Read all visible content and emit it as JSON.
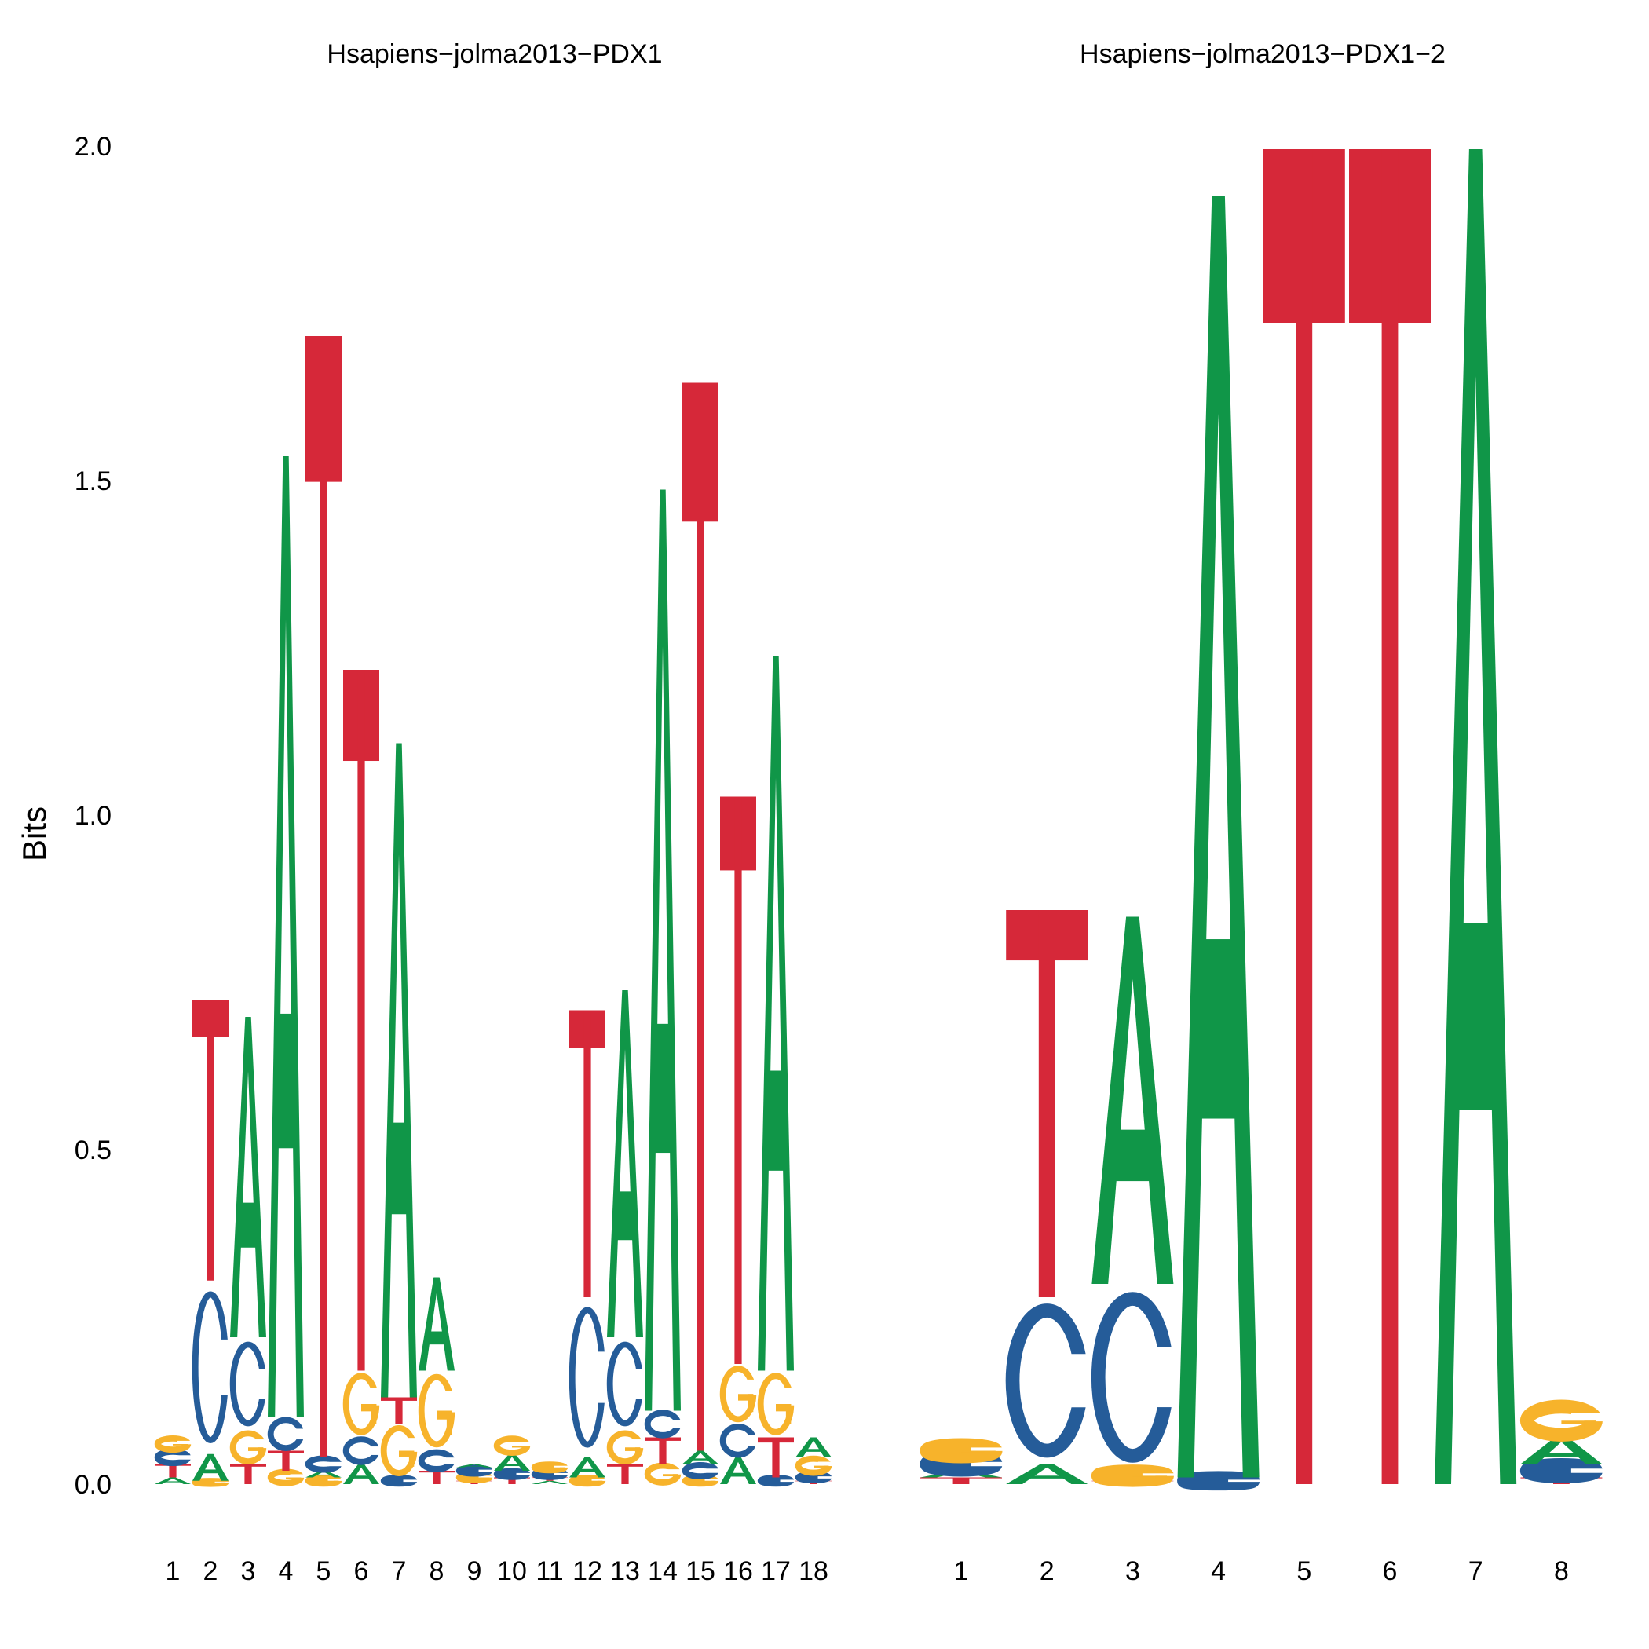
{
  "chart_data": {
    "type": "sequence-logo",
    "ylabel": "Bits",
    "ylim": [
      0,
      2
    ],
    "yticks": [
      "0.0",
      "0.5",
      "1.0",
      "1.5",
      "2.0"
    ],
    "colors": {
      "A": "#109648",
      "C": "#255C99",
      "G": "#F7B32B",
      "T": "#D62839"
    },
    "panels": [
      {
        "title": "Hsapiens−jolma2013−PDX1",
        "positions": [
          {
            "label": "1",
            "letters": [
              [
                "A",
                0.01
              ],
              [
                "T",
                0.02
              ],
              [
                "C",
                0.02
              ],
              [
                "G",
                0.02
              ]
            ]
          },
          {
            "label": "2",
            "letters": [
              [
                "G",
                0.005
              ],
              [
                "A",
                0.04
              ],
              [
                "C",
                0.26
              ],
              [
                "T",
                0.42
              ]
            ]
          },
          {
            "label": "3",
            "letters": [
              [
                "T",
                0.03
              ],
              [
                "G",
                0.05
              ],
              [
                "C",
                0.14
              ],
              [
                "A",
                0.48
              ]
            ]
          },
          {
            "label": "4",
            "letters": [
              [
                "G",
                0.02
              ],
              [
                "T",
                0.03
              ],
              [
                "C",
                0.05
              ],
              [
                "A",
                1.44
              ]
            ]
          },
          {
            "label": "5",
            "letters": [
              [
                "G",
                0.01
              ],
              [
                "A",
                0.01
              ],
              [
                "C",
                0.02
              ],
              [
                "T",
                1.68
              ]
            ]
          },
          {
            "label": "6",
            "letters": [
              [
                "A",
                0.03
              ],
              [
                "C",
                0.04
              ],
              [
                "G",
                0.1
              ],
              [
                "T",
                1.05
              ]
            ]
          },
          {
            "label": "7",
            "letters": [
              [
                "C",
                0.01
              ],
              [
                "G",
                0.08
              ],
              [
                "T",
                0.04
              ],
              [
                "A",
                0.98
              ]
            ]
          },
          {
            "label": "8",
            "letters": [
              [
                "T",
                0.02
              ],
              [
                "C",
                0.03
              ],
              [
                "G",
                0.12
              ],
              [
                "A",
                0.14
              ]
            ]
          },
          {
            "label": "9",
            "letters": [
              [
                "T",
                0.005
              ],
              [
                "G",
                0.01
              ],
              [
                "C",
                0.01
              ],
              [
                "A",
                0.005
              ]
            ]
          },
          {
            "label": "10",
            "letters": [
              [
                "T",
                0.01
              ],
              [
                "C",
                0.01
              ],
              [
                "A",
                0.025
              ],
              [
                "G",
                0.025
              ]
            ]
          },
          {
            "label": "11",
            "letters": [
              [
                "A",
                0.005
              ],
              [
                "T",
                0.005
              ],
              [
                "C",
                0.01
              ],
              [
                "G",
                0.01
              ]
            ]
          },
          {
            "label": "12",
            "letters": [
              [
                "G",
                0.01
              ],
              [
                "A",
                0.03
              ],
              [
                "C",
                0.24
              ],
              [
                "T",
                0.43
              ]
            ]
          },
          {
            "label": "13",
            "letters": [
              [
                "T",
                0.03
              ],
              [
                "G",
                0.05
              ],
              [
                "C",
                0.14
              ],
              [
                "A",
                0.52
              ]
            ]
          },
          {
            "label": "14",
            "letters": [
              [
                "G",
                0.03
              ],
              [
                "T",
                0.04
              ],
              [
                "C",
                0.04
              ],
              [
                "A",
                1.38
              ]
            ]
          },
          {
            "label": "15",
            "letters": [
              [
                "G",
                0.01
              ],
              [
                "C",
                0.02
              ],
              [
                "A",
                0.02
              ],
              [
                "T",
                1.6
              ]
            ]
          },
          {
            "label": "16",
            "letters": [
              [
                "A",
                0.04
              ],
              [
                "C",
                0.05
              ],
              [
                "G",
                0.09
              ],
              [
                "T",
                0.85
              ]
            ]
          },
          {
            "label": "17",
            "letters": [
              [
                "C",
                0.01
              ],
              [
                "T",
                0.06
              ],
              [
                "G",
                0.1
              ],
              [
                "A",
                1.07
              ]
            ]
          },
          {
            "label": "18",
            "letters": [
              [
                "T",
                0.005
              ],
              [
                "C",
                0.01
              ],
              [
                "G",
                0.025
              ],
              [
                "A",
                0.03
              ]
            ]
          }
        ]
      },
      {
        "title": "Hsapiens−jolma2013−PDX1−2",
        "positions": [
          {
            "label": "1",
            "letters": [
              [
                "T",
                0.01
              ],
              [
                "A",
                0.01
              ],
              [
                "C",
                0.02
              ],
              [
                "G",
                0.02
              ]
            ]
          },
          {
            "label": "2",
            "letters": [
              [
                "A",
                0.03
              ],
              [
                "C",
                0.25
              ],
              [
                "T",
                0.58
              ]
            ]
          },
          {
            "label": "3",
            "letters": [
              [
                "T",
                0.005
              ],
              [
                "G",
                0.015
              ],
              [
                "C",
                0.28
              ],
              [
                "A",
                0.55
              ]
            ]
          },
          {
            "label": "4",
            "letters": [
              [
                "C",
                0.01
              ],
              [
                "A",
                1.92
              ]
            ]
          },
          {
            "label": "5",
            "letters": [
              [
                "T",
                2.0
              ]
            ]
          },
          {
            "label": "6",
            "letters": [
              [
                "T",
                2.0
              ]
            ]
          },
          {
            "label": "7",
            "letters": [
              [
                "A",
                2.0
              ]
            ]
          },
          {
            "label": "8",
            "letters": [
              [
                "T",
                0.01
              ],
              [
                "C",
                0.02
              ],
              [
                "A",
                0.04
              ],
              [
                "G",
                0.05
              ]
            ]
          }
        ]
      }
    ]
  }
}
